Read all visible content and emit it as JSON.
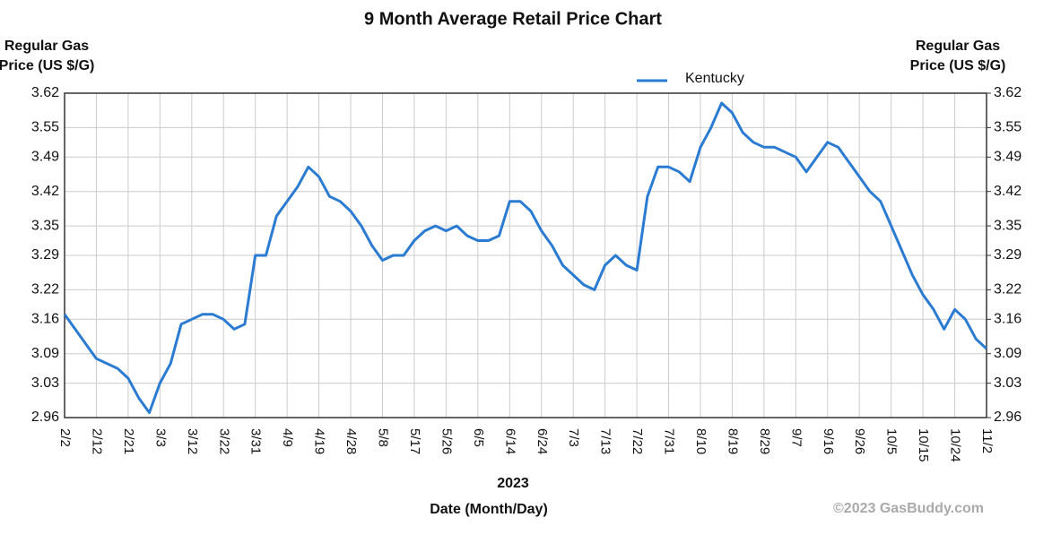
{
  "chart_data": {
    "type": "line",
    "title": "9 Month Average Retail Price Chart",
    "y_label": [
      "Regular Gas",
      "Price (US $/G)"
    ],
    "y2_label": [
      "Regular Gas",
      "Price (US $/G)"
    ],
    "x_label": "Date (Month/Day)",
    "year": "2023",
    "watermark": "©2023 GasBuddy.com",
    "categories": [
      "2/2",
      null,
      null,
      "2/12",
      null,
      null,
      "2/21",
      null,
      null,
      "3/3",
      null,
      null,
      "3/12",
      null,
      null,
      "3/22",
      null,
      null,
      "3/31",
      null,
      null,
      "4/9",
      null,
      null,
      "4/19",
      null,
      null,
      "4/28",
      null,
      null,
      "5/8",
      null,
      null,
      "5/17",
      null,
      null,
      "5/26",
      null,
      null,
      "6/5",
      null,
      null,
      "6/14",
      null,
      null,
      "6/24",
      null,
      null,
      "7/3",
      null,
      null,
      "7/13",
      null,
      null,
      "7/22",
      null,
      null,
      "7/31",
      null,
      null,
      "8/10",
      null,
      null,
      "8/19",
      null,
      null,
      "8/29",
      null,
      null,
      "9/7",
      null,
      null,
      "9/16",
      null,
      null,
      "9/26",
      null,
      null,
      "10/5",
      null,
      null,
      "10/15",
      null,
      null,
      "10/24",
      null,
      null,
      "11/2"
    ],
    "series": [
      {
        "name": "Kentucky",
        "color": "#2a7bd1",
        "values": [
          3.17,
          3.14,
          3.11,
          3.08,
          3.07,
          3.06,
          3.04,
          3.0,
          2.97,
          3.03,
          3.07,
          3.15,
          3.16,
          3.17,
          3.17,
          3.16,
          3.14,
          3.15,
          3.29,
          3.29,
          3.37,
          3.4,
          3.43,
          3.47,
          3.45,
          3.41,
          3.4,
          3.38,
          3.35,
          3.31,
          3.28,
          3.29,
          3.29,
          3.32,
          3.34,
          3.35,
          3.34,
          3.35,
          3.33,
          3.32,
          3.32,
          3.33,
          3.4,
          3.4,
          3.38,
          3.34,
          3.31,
          3.27,
          3.25,
          3.23,
          3.22,
          3.27,
          3.29,
          3.27,
          3.26,
          3.41,
          3.47,
          3.47,
          3.46,
          3.44,
          3.51,
          3.55,
          3.6,
          3.58,
          3.54,
          3.52,
          3.51,
          3.51,
          3.5,
          3.49,
          3.46,
          3.49,
          3.52,
          3.51,
          3.48,
          3.45,
          3.42,
          3.4,
          3.35,
          3.3,
          3.25,
          3.21,
          3.18,
          3.14,
          3.18,
          3.16,
          3.12,
          3.1
        ]
      }
    ],
    "ylim": [
      2.96,
      3.62
    ],
    "yticks": [
      3.62,
      3.55,
      3.49,
      3.42,
      3.35,
      3.29,
      3.22,
      3.16,
      3.09,
      3.03,
      2.96
    ],
    "y2lim": [
      2.96,
      3.62
    ],
    "y2ticks": [
      3.62,
      3.55,
      3.49,
      3.42,
      3.35,
      3.29,
      3.22,
      3.16,
      3.09,
      3.03,
      2.96
    ],
    "grid": true,
    "legend": "top"
  }
}
